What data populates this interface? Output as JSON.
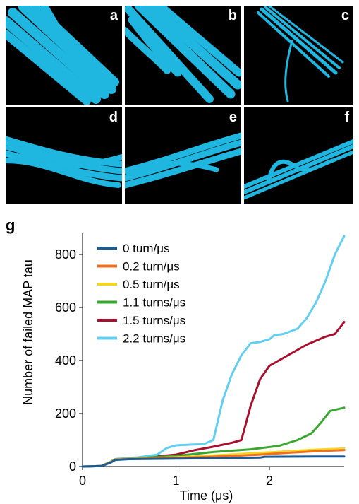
{
  "panels": [
    {
      "label": "a",
      "description": "tube bundle"
    },
    {
      "label": "b",
      "description": "tube bundle"
    },
    {
      "label": "c",
      "description": "tube bundle"
    },
    {
      "label": "d",
      "description": "tube bundle"
    },
    {
      "label": "e",
      "description": "tube bundle"
    },
    {
      "label": "f",
      "description": "tube bundle"
    }
  ],
  "colors": {
    "panel_background": "#000000",
    "tube": "#1fb6e0"
  },
  "chart_panel_label": "g",
  "chart_data": {
    "type": "line",
    "title": "",
    "xlabel": "Time (μs)",
    "ylabel": "Number of failed MAP tau",
    "xlim": [
      0,
      2.8
    ],
    "ylim": [
      0,
      880
    ],
    "xticks": [
      0,
      1,
      2
    ],
    "xtick_labels": [
      "0",
      "1",
      "2"
    ],
    "yticks": [
      0,
      200,
      400,
      600,
      800
    ],
    "ytick_labels": [
      "0",
      "200",
      "400",
      "600",
      "800"
    ],
    "grid": false,
    "legend_position": "top-left",
    "series": [
      {
        "name": "0 turn/μs",
        "color": "#1d5a94",
        "x": [
          0,
          0.2,
          0.3,
          0.35,
          0.5,
          1.0,
          1.5,
          1.9,
          1.95,
          2.5,
          2.8
        ],
        "y": [
          0,
          2,
          15,
          25,
          28,
          30,
          32,
          34,
          37,
          38,
          38
        ]
      },
      {
        "name": "0.2 turn/μs",
        "color": "#f07020",
        "x": [
          0,
          0.2,
          0.3,
          0.35,
          0.5,
          1.0,
          1.3,
          1.6,
          1.9,
          2.2,
          2.5,
          2.8
        ],
        "y": [
          0,
          2,
          16,
          26,
          29,
          33,
          36,
          40,
          45,
          52,
          58,
          62
        ]
      },
      {
        "name": "0.5 turn/μs",
        "color": "#f2d622",
        "x": [
          0,
          0.2,
          0.3,
          0.35,
          0.5,
          1.0,
          1.3,
          1.6,
          1.9,
          2.2,
          2.5,
          2.8
        ],
        "y": [
          0,
          2,
          17,
          27,
          30,
          35,
          40,
          46,
          52,
          58,
          64,
          68
        ]
      },
      {
        "name": "1.1 turns/μs",
        "color": "#3aa830",
        "x": [
          0,
          0.2,
          0.3,
          0.35,
          0.6,
          1.0,
          1.4,
          1.8,
          2.1,
          2.3,
          2.45,
          2.55,
          2.65,
          2.8
        ],
        "y": [
          0,
          2,
          18,
          28,
          32,
          40,
          55,
          65,
          78,
          100,
          125,
          165,
          210,
          222
        ]
      },
      {
        "name": "1.5 turns/μs",
        "color": "#a8102e",
        "x": [
          0,
          0.2,
          0.3,
          0.35,
          0.6,
          1.0,
          1.2,
          1.4,
          1.6,
          1.7,
          1.8,
          1.9,
          2.0,
          2.1,
          2.2,
          2.3,
          2.4,
          2.5,
          2.6,
          2.7,
          2.8
        ],
        "y": [
          0,
          2,
          18,
          28,
          32,
          45,
          62,
          75,
          90,
          100,
          230,
          330,
          380,
          400,
          420,
          440,
          460,
          475,
          490,
          500,
          545
        ]
      },
      {
        "name": "2.2 turns/μs",
        "color": "#62cef2",
        "x": [
          0,
          0.2,
          0.3,
          0.35,
          0.6,
          0.8,
          0.9,
          1.0,
          1.3,
          1.4,
          1.5,
          1.6,
          1.7,
          1.8,
          1.9,
          2.0,
          2.05,
          2.15,
          2.3,
          2.4,
          2.5,
          2.6,
          2.7,
          2.8
        ],
        "y": [
          0,
          2,
          18,
          28,
          35,
          45,
          70,
          80,
          85,
          100,
          250,
          350,
          420,
          465,
          470,
          480,
          495,
          500,
          520,
          560,
          620,
          700,
          800,
          870
        ]
      }
    ]
  }
}
